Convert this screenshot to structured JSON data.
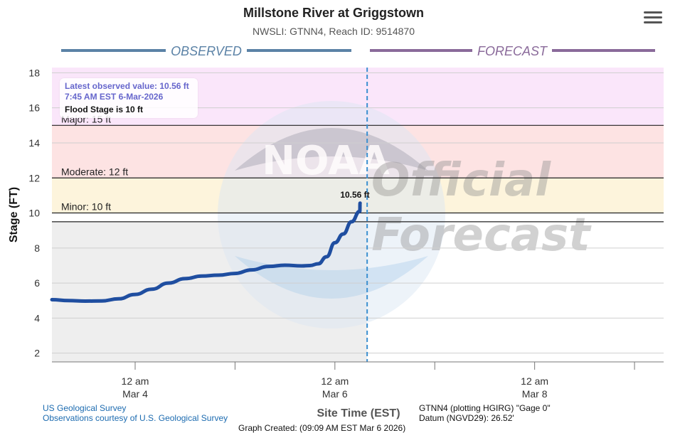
{
  "header": {
    "title": "Millstone River at Griggstown",
    "subtitle": "NWSLI: GTNN4, Reach ID: 9514870"
  },
  "menu": {
    "icon": "hamburger-menu-icon"
  },
  "section_labels": {
    "observed": "OBSERVED",
    "forecast": "FORECAST"
  },
  "info_box": {
    "latest_line": "Latest observed value: 10.56 ft",
    "time_line": "7:45 AM EST 6-Mar-2026",
    "flood_stage_line": "Flood Stage is 10 ft"
  },
  "watermark": {
    "agency_ring": "NATIONAL OCEANIC AND ATMOSPHERIC ADMINISTRATION · U.S. DEPARTMENT OF COMMERCE",
    "logo_text": "NOAA",
    "official_1": "Official",
    "official_2": "Forecast"
  },
  "footer": {
    "source_1": "US Geological Survey",
    "source_2": "Observations courtesy of U.S. Geological Survey",
    "site_time": "Site Time (EST)",
    "gage_1": "GTNN4 (plotting HGIRG) \"Gage 0\"",
    "gage_2": "Datum (NGVD29): 26.52'",
    "created": "Graph Created: (09:09 AM EST Mar 6 2026)"
  },
  "colors": {
    "major_band": "#fae6fa",
    "moderate_band": "#fde3e3",
    "minor_band": "#fdf4dc",
    "observed_bg": "#eeeeee",
    "observed_line": "#1f4ea0",
    "now_line": "#3a8fd0",
    "observed_header": "#5b82a6",
    "forecast_header": "#8a6a9a",
    "info_text": "#6666cc"
  },
  "chart_data": {
    "type": "line",
    "title": "Millstone River at Griggstown",
    "subtitle": "NWSLI: GTNN4, Reach ID: 9514870",
    "xlabel": "Site Time (EST)",
    "ylabel": "Stage (FT)",
    "ylim": [
      1.5,
      18.3
    ],
    "xlim": [
      "2026-03-03 04:00",
      "2026-03-09 07:00"
    ],
    "y_ticks": [
      2,
      4,
      6,
      8,
      10,
      12,
      14,
      16,
      18
    ],
    "x_ticks": [
      {
        "t": "2026-03-04 00:00",
        "line1": "12 am",
        "line2": "Mar 4"
      },
      {
        "t": "2026-03-06 00:00",
        "line1": "12 am",
        "line2": "Mar 6"
      },
      {
        "t": "2026-03-08 00:00",
        "line1": "12 am",
        "line2": "Mar 8"
      }
    ],
    "x_minor_ticks": [
      "2026-03-05 00:00",
      "2026-03-07 00:00",
      "2026-03-09 00:00"
    ],
    "grid": true,
    "flood_categories": [
      {
        "name": "Action",
        "stage": 9.5,
        "label": ""
      },
      {
        "name": "Minor",
        "stage": 10,
        "label": "Minor: 10 ft"
      },
      {
        "name": "Moderate",
        "stage": 12,
        "label": "Moderate: 12 ft"
      },
      {
        "name": "Major",
        "stage": 15,
        "label": "Major: 15 ft"
      }
    ],
    "now_time": "2026-03-06 07:45",
    "latest_label": "10.56 ft",
    "series": [
      {
        "kind": "observed",
        "points": [
          [
            "2026-03-03 04:00",
            5.05
          ],
          [
            "2026-03-03 08:00",
            5.0
          ],
          [
            "2026-03-03 12:00",
            4.97
          ],
          [
            "2026-03-03 16:00",
            4.98
          ],
          [
            "2026-03-03 20:00",
            5.1
          ],
          [
            "2026-03-04 00:00",
            5.35
          ],
          [
            "2026-03-04 04:00",
            5.65
          ],
          [
            "2026-03-04 08:00",
            6.0
          ],
          [
            "2026-03-04 12:00",
            6.25
          ],
          [
            "2026-03-04 16:00",
            6.4
          ],
          [
            "2026-03-04 20:00",
            6.45
          ],
          [
            "2026-03-05 00:00",
            6.55
          ],
          [
            "2026-03-05 04:00",
            6.75
          ],
          [
            "2026-03-05 08:00",
            6.95
          ],
          [
            "2026-03-05 12:00",
            7.02
          ],
          [
            "2026-03-05 16:00",
            6.98
          ],
          [
            "2026-03-05 20:00",
            7.1
          ],
          [
            "2026-03-06 00:00",
            7.65
          ],
          [
            "2026-03-05 22:00",
            7.5
          ],
          [
            "2026-03-05 18:00",
            7.0
          ]
        ]
      }
    ]
  }
}
